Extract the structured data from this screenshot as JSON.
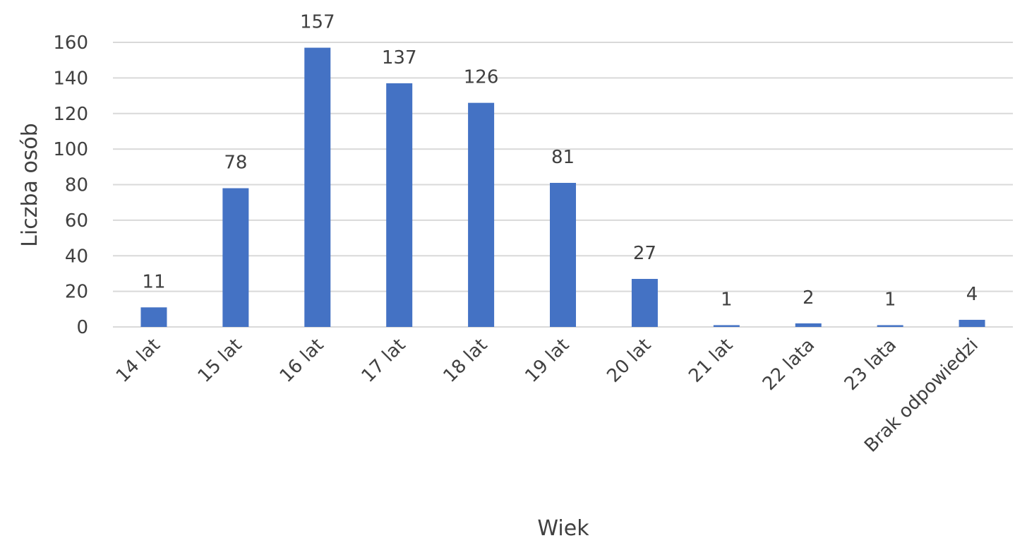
{
  "chart_data": {
    "type": "bar",
    "title": "",
    "xlabel": "Wiek",
    "ylabel": "Liczba osób",
    "categories": [
      "14 lat",
      "15 lat",
      "16 lat",
      "17 lat",
      "18 lat",
      "19 lat",
      "20 lat",
      "21 lat",
      "22 lata",
      "23 lata",
      "Brak odpowiedzi"
    ],
    "values": [
      11,
      78,
      157,
      137,
      126,
      81,
      27,
      1,
      2,
      1,
      4
    ],
    "data_labels": [
      "11",
      "78",
      "157",
      "137",
      "126",
      "81",
      "27",
      "1",
      "2",
      "1",
      "4"
    ],
    "ylim": [
      0,
      160
    ],
    "yticks": [
      0,
      20,
      40,
      60,
      80,
      100,
      120,
      140,
      160
    ],
    "grid": true,
    "legend": "none",
    "colors": {
      "bar": "#4472C4",
      "grid": "#D9D9D9",
      "text": "#404040"
    }
  }
}
